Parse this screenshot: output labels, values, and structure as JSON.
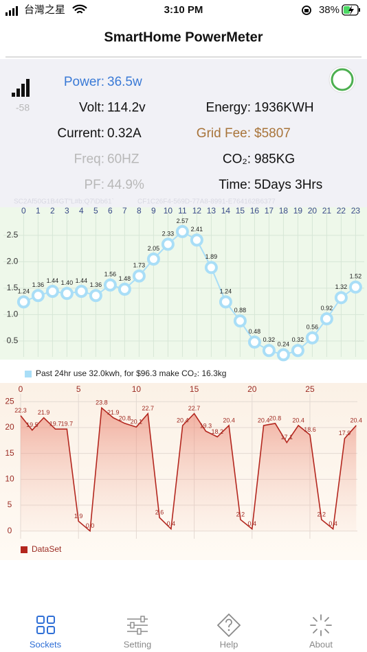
{
  "status_bar": {
    "carrier": "台灣之星",
    "time": "3:10 PM",
    "battery": "38%"
  },
  "nav": {
    "title": "SmartHome PowerMeter"
  },
  "meter": {
    "signal": "-58",
    "left": [
      {
        "label": "Power:",
        "value": "36.5w"
      },
      {
        "label": "Volt:",
        "value": "114.2v"
      },
      {
        "label": "Current:",
        "value": "0.32A"
      },
      {
        "label": "Freq:",
        "value": "60HZ"
      },
      {
        "label": "PF:",
        "value": "44.9%"
      }
    ],
    "right": [
      {
        "label": "Energy:",
        "value": "1936KWH"
      },
      {
        "label": "Grid Fee:",
        "value": "$5807"
      },
      {
        "label": "CO₂:",
        "value": "985KG"
      },
      {
        "label": "Time:",
        "value": "5Days 3Hrs"
      }
    ],
    "device_code": "SC2Af50G1B4GT\"L#b:Q7\\Db61`",
    "device_uuid": "CF1C26F4-569D-77A8-8991-E764162B6377"
  },
  "chart_data": [
    {
      "type": "line",
      "markers": true,
      "area": false,
      "grid": true,
      "x": [
        0,
        1,
        2,
        3,
        4,
        5,
        6,
        7,
        8,
        9,
        10,
        11,
        12,
        13,
        14,
        15,
        16,
        17,
        18,
        19,
        20,
        21,
        22,
        23
      ],
      "xlim": [
        -1.4,
        23.6
      ],
      "xticks": [
        0,
        1,
        2,
        3,
        4,
        5,
        6,
        7,
        8,
        9,
        10,
        11,
        12,
        13,
        14,
        15,
        16,
        17,
        18,
        19,
        20,
        21,
        22,
        23
      ],
      "ylim": [
        0.2,
        2.9
      ],
      "yticks": [
        0.5,
        {
          "value": 1,
          "label": "1.0"
        },
        1.5,
        {
          "value": 2,
          "label": "2.0"
        },
        2.5
      ],
      "series": [
        {
          "name": "Past 24hr use 32.0kwh, for $96.3 make CO₂: 16.3kg",
          "color": "#a9def7",
          "values": [
            1.24,
            1.36,
            1.44,
            1.4,
            1.44,
            1.36,
            1.56,
            1.48,
            1.73,
            2.05,
            2.33,
            2.57,
            2.41,
            1.89,
            1.24,
            0.88,
            0.48,
            0.32,
            0.24,
            0.32,
            0.56,
            0.92,
            1.32,
            1.52
          ],
          "value_labels": [
            "1.24",
            "1.36",
            "1.44",
            "1.40",
            "1.44",
            "1.36",
            "1.56",
            "1.48",
            "1.73",
            "2.05",
            "2.33",
            "2.57",
            "2.41",
            "1.89",
            "1.24",
            "0.88",
            "0.48",
            "0.32",
            "0.24",
            "0.32",
            "0.56",
            "0.92",
            "1.32",
            "1.52"
          ]
        }
      ]
    },
    {
      "type": "line",
      "markers": false,
      "area": true,
      "grid": true,
      "x": [
        0,
        1,
        2,
        3,
        4,
        5,
        6,
        7,
        8,
        9,
        10,
        11,
        12,
        13,
        14,
        15,
        16,
        17,
        18,
        19,
        20,
        21,
        22,
        23,
        24,
        25,
        26,
        27,
        28,
        29
      ],
      "xlim": [
        0,
        29.1
      ],
      "xticks": [
        0,
        5,
        10,
        15,
        20,
        25
      ],
      "ylim": [
        -1.5,
        25.7
      ],
      "yticks": [
        0,
        5,
        10,
        15,
        20,
        25
      ],
      "series": [
        {
          "name": "DataSet",
          "color": "#b3261e",
          "values": [
            22.3,
            19.5,
            21.9,
            19.7,
            19.7,
            1.9,
            0,
            23.8,
            21.9,
            20.8,
            20.1,
            22.7,
            2.6,
            0.4,
            20.4,
            22.7,
            19.3,
            18.2,
            20.4,
            2.2,
            0.4,
            20.4,
            20.8,
            17.1,
            20.4,
            18.6,
            2.2,
            0.4,
            17.9,
            20.4
          ],
          "value_labels": [
            "22.3",
            "19.5",
            "21.9",
            "19.7",
            "19.7",
            "1.9",
            "0.0",
            "23.8",
            "21.9",
            "20.8",
            "20.1",
            "22.7",
            "2.6",
            "0.4",
            "20.4",
            "22.7",
            "19.3",
            "18.2",
            "20.4",
            "2.2",
            "0.4",
            "20.4",
            "20.8",
            "17.1",
            "20.4",
            "18.6",
            "2.2",
            "0.4",
            "17.9",
            "20.4"
          ]
        }
      ]
    }
  ],
  "tabs": [
    "Sockets",
    "Setting",
    "Help",
    "About"
  ]
}
